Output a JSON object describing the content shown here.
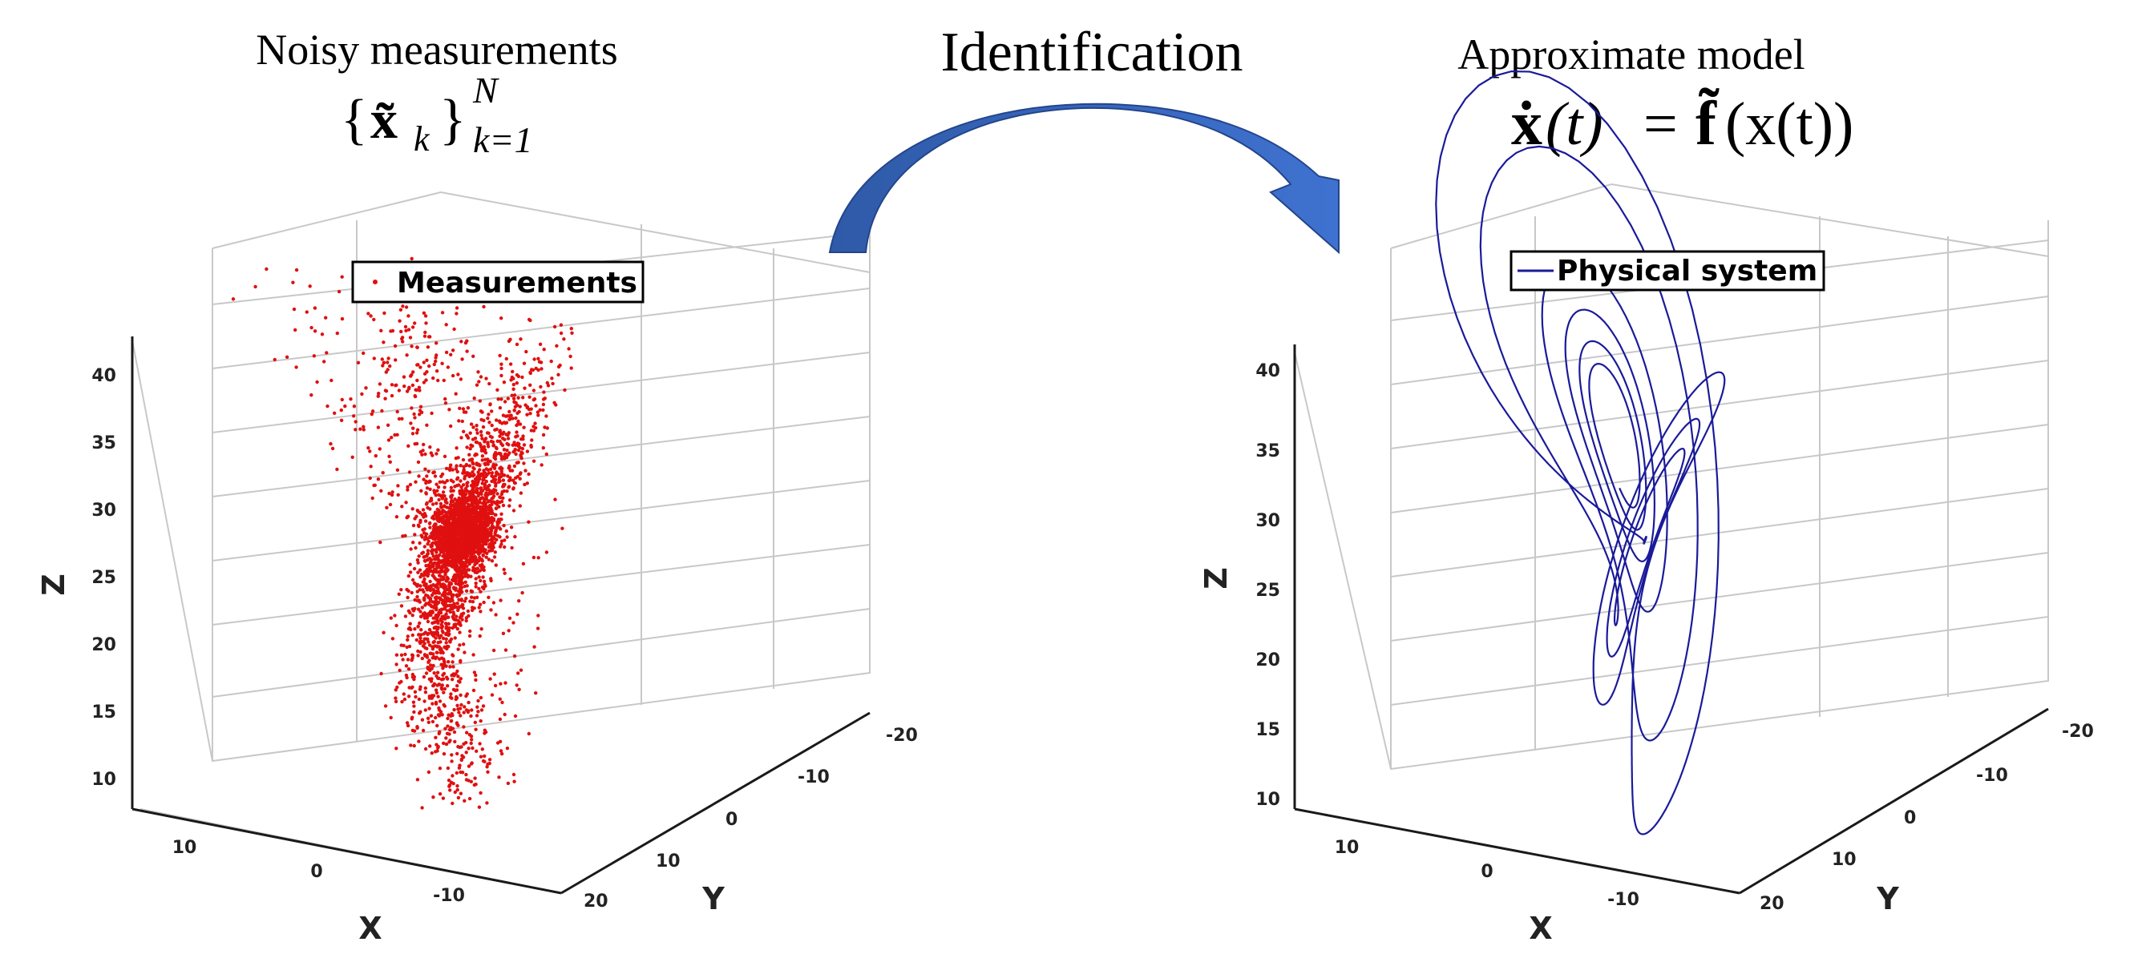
{
  "left_panel": {
    "title": "Noisy measurements",
    "formula": {
      "open": "{",
      "var": "x̃",
      "sub": "k",
      "close": "}",
      "sup": "N",
      "lower": "k=1"
    },
    "legend": "Measurements",
    "marker_color": "#e01010",
    "x_label": "X",
    "y_label": "Y",
    "z_label": "Z",
    "z_ticks": [
      "10",
      "15",
      "20",
      "25",
      "30",
      "35",
      "40"
    ],
    "x_ticks": [
      "10",
      "0",
      "-10"
    ],
    "y_ticks": [
      "-20",
      "-10",
      "0",
      "10",
      "20"
    ]
  },
  "center": {
    "label": "Identification",
    "arrow_color": "#3a63b8"
  },
  "right_panel": {
    "title": "Approximate model",
    "formula": {
      "lhs_var": "ẋ",
      "lhs_arg": "(t)",
      "eq": "=",
      "rhs_fn": "f̃",
      "rhs_arg": "(x(t))"
    },
    "legend": "Physical system",
    "line_color": "#1a1a9a",
    "x_label": "X",
    "y_label": "Y",
    "z_label": "Z",
    "z_ticks": [
      "10",
      "15",
      "20",
      "25",
      "30",
      "35",
      "40"
    ],
    "x_ticks": [
      "10",
      "0",
      "-10"
    ],
    "y_ticks": [
      "-20",
      "-10",
      "0",
      "10",
      "20"
    ]
  }
}
